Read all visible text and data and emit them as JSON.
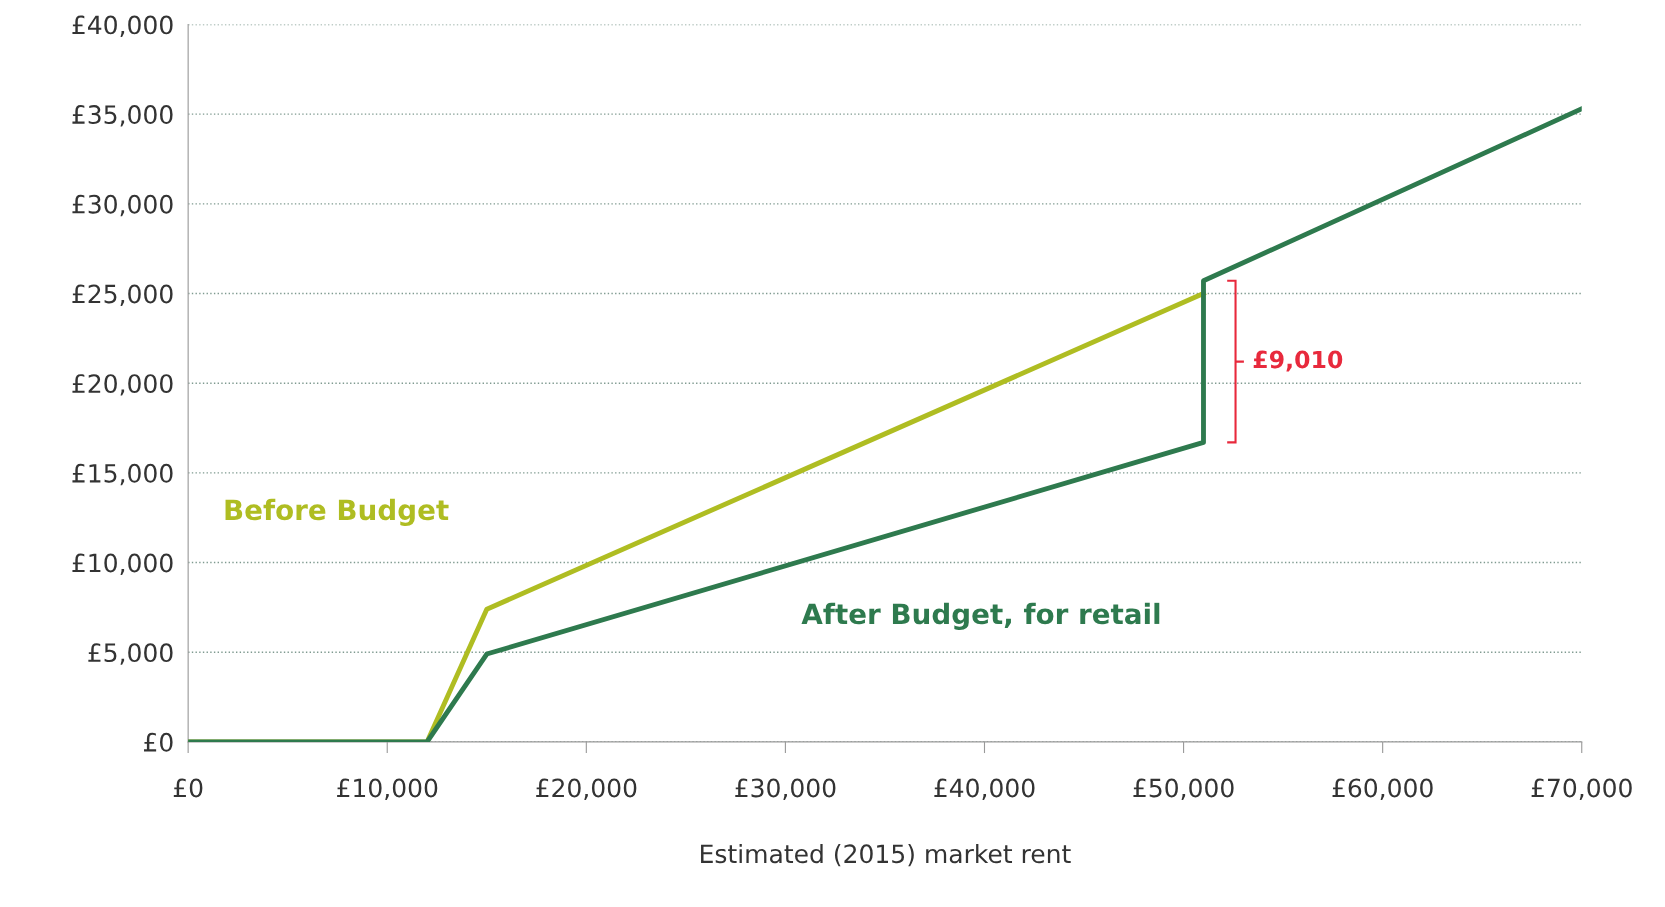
{
  "chart_data": {
    "type": "line",
    "xlabel": "Estimated (2015) market rent",
    "series": [
      {
        "name": "Before Budget",
        "color": "#afbd22",
        "x": [
          0,
          12000,
          15000,
          51000
        ],
        "values": [
          0,
          0,
          7400,
          25000
        ]
      },
      {
        "name": "After Budget, for retail",
        "color": "#2e7a4e",
        "x": [
          0,
          12000,
          15000,
          51000,
          51000,
          70000
        ],
        "values": [
          0,
          0,
          4900,
          16700,
          25710,
          35300
        ]
      }
    ],
    "annotations": [
      {
        "text": "£9,010",
        "x": 51000,
        "y": 21205
      }
    ],
    "xlim": [
      0,
      70000
    ],
    "ylim": [
      0,
      40000
    ],
    "xticks": [
      {
        "value": 0,
        "label": "£0"
      },
      {
        "value": 10000,
        "label": "£10,000"
      },
      {
        "value": 20000,
        "label": "£20,000"
      },
      {
        "value": 30000,
        "label": "£30,000"
      },
      {
        "value": 40000,
        "label": "£40,000"
      },
      {
        "value": 50000,
        "label": "£50,000"
      },
      {
        "value": 60000,
        "label": "£60,000"
      },
      {
        "value": 70000,
        "label": "£70,000"
      }
    ],
    "yticks": [
      {
        "value": 0,
        "label": "£0"
      },
      {
        "value": 5000,
        "label": "£5,000"
      },
      {
        "value": 10000,
        "label": "£10,000"
      },
      {
        "value": 15000,
        "label": "£15,000"
      },
      {
        "value": 20000,
        "label": "£20,000"
      },
      {
        "value": 25000,
        "label": "£25,000"
      },
      {
        "value": 30000,
        "label": "£30,000"
      },
      {
        "value": 35000,
        "label": "£35,000"
      },
      {
        "value": 40000,
        "label": "£40,000"
      }
    ],
    "grid": "y",
    "legend": false,
    "marker": "none",
    "line_style": "solid"
  }
}
